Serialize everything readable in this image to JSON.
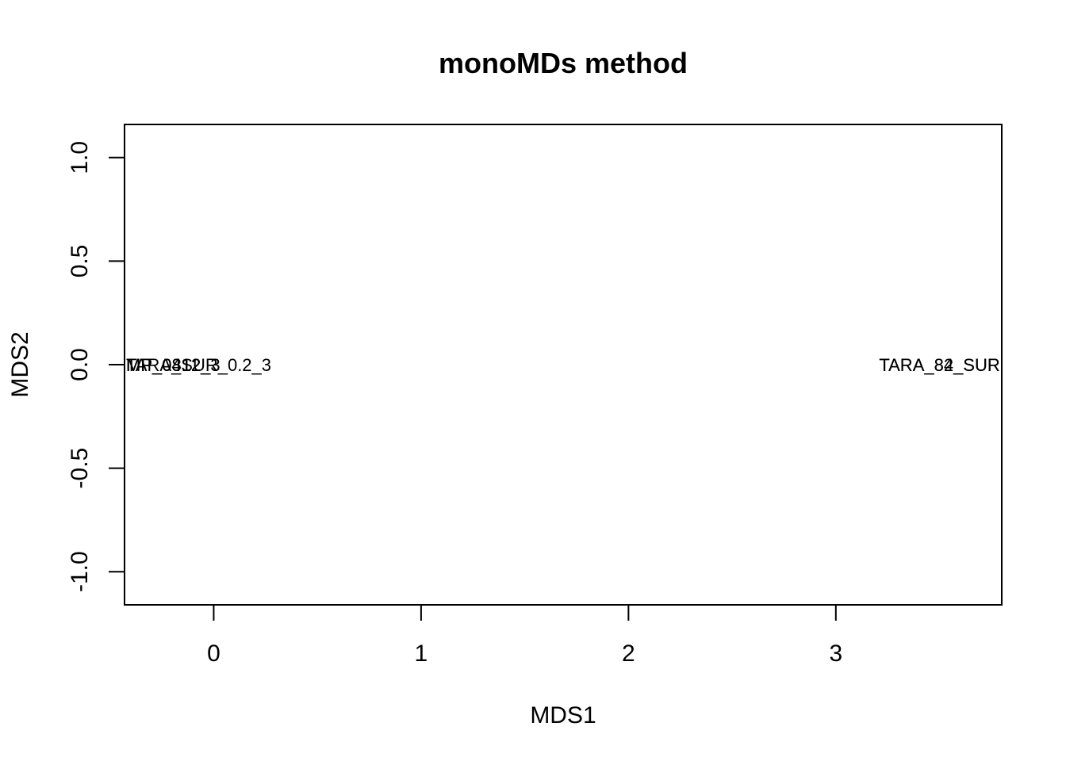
{
  "chart_data": {
    "type": "scatter",
    "title": "monoMDs method",
    "xlabel": "MDS1",
    "ylabel": "MDS2",
    "xlim": [
      -0.43,
      3.8
    ],
    "ylim": [
      -1.16,
      1.16
    ],
    "x_ticks": [
      0,
      1,
      2,
      3
    ],
    "x_tick_labels": [
      "0",
      "1",
      "2",
      "3"
    ],
    "y_ticks": [
      -1.0,
      -0.5,
      0.0,
      0.5,
      1.0
    ],
    "y_tick_labels": [
      "-1.0",
      "-0.5",
      "0.0",
      "0.5",
      "1.0"
    ],
    "grid": false,
    "legend": "none",
    "points": [
      {
        "label": "TARA_82_SUR",
        "x": 3.5,
        "y": 0.0
      },
      {
        "label": "TARA_84_SUR",
        "x": 3.5,
        "y": 0.0
      },
      {
        "label": "MP_0812",
        "x": -0.42,
        "y": 0.0
      },
      {
        "label": "MP_0412_3",
        "x": -0.42,
        "y": 0.0
      },
      {
        "label": "TARA_SUR_0.2_3",
        "x": -0.41,
        "y": 0.0
      },
      {
        "label": "MP_0312_3",
        "x": -0.42,
        "y": 0.0
      }
    ]
  }
}
